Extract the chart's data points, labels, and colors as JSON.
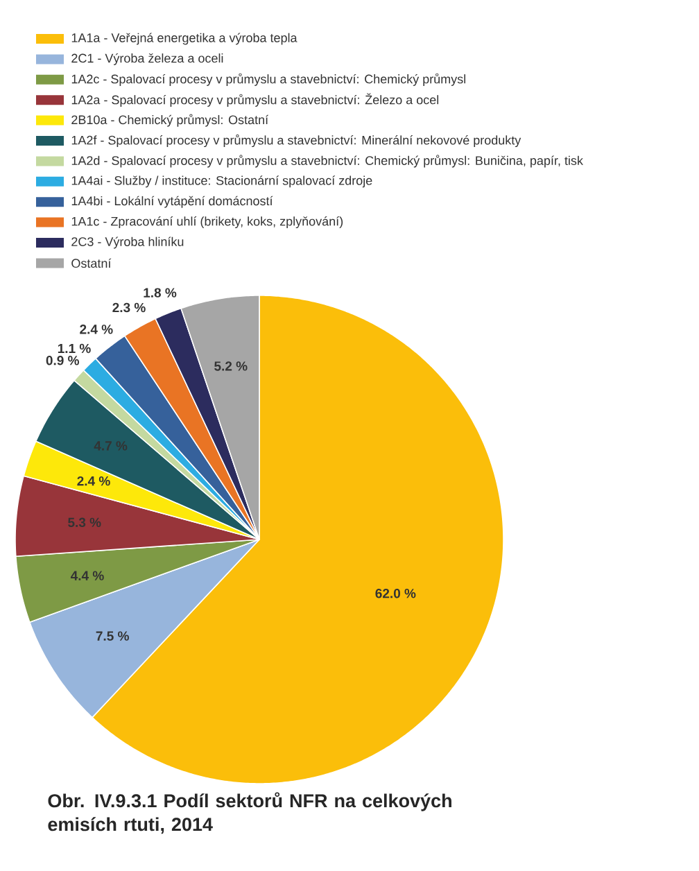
{
  "chart_data": {
    "type": "pie",
    "title": "Obr. IV.9.3.1  Podíl sektorů NFR na celkových emisích rtuti, 2014",
    "categories": [
      "1A1a - Veřejná energetika a výroba tepla",
      "2C1 - Výroba železa a oceli",
      "1A2c - Spalovací procesy v průmyslu a stavebnictví: Chemický průmysl",
      "1A2a - Spalovací procesy v průmyslu a stavebnictví: Železo a ocel",
      "2B10a - Chemický průmysl: Ostatní",
      "1A2f - Spalovací procesy v průmyslu a stavebnictví: Minerální nekovové produkty",
      "1A2d - Spalovací procesy v průmyslu a stavebnictví: Chemický průmysl: Buničina, papír, tisk",
      "1A4ai - Služby / instituce: Stacionární spalovací zdroje",
      "1A4bi - Lokální vytápění domácností",
      "1A1c - Zpracování uhlí (brikety, koks, zplyňování)",
      "2C3 - Výroba hliníku",
      "Ostatní"
    ],
    "values": [
      62.0,
      7.5,
      4.4,
      5.3,
      2.4,
      4.7,
      0.9,
      1.1,
      2.4,
      2.3,
      1.8,
      5.2
    ],
    "value_labels": [
      "62.0 %",
      "7.5 %",
      "4.4 %",
      "5.3 %",
      "2.4 %",
      "4.7 %",
      "0.9 %",
      "1.1 %",
      "2.4 %",
      "2.3 %",
      "1.8 %",
      "5.2 %"
    ],
    "colors": [
      "#fbbe0a",
      "#97b5dc",
      "#7e9a45",
      "#98353a",
      "#fde80a",
      "#1e5a62",
      "#c4d9a0",
      "#2cace2",
      "#36619b",
      "#e97424",
      "#2c2c5e",
      "#a6a6a6"
    ],
    "legend": "top"
  }
}
